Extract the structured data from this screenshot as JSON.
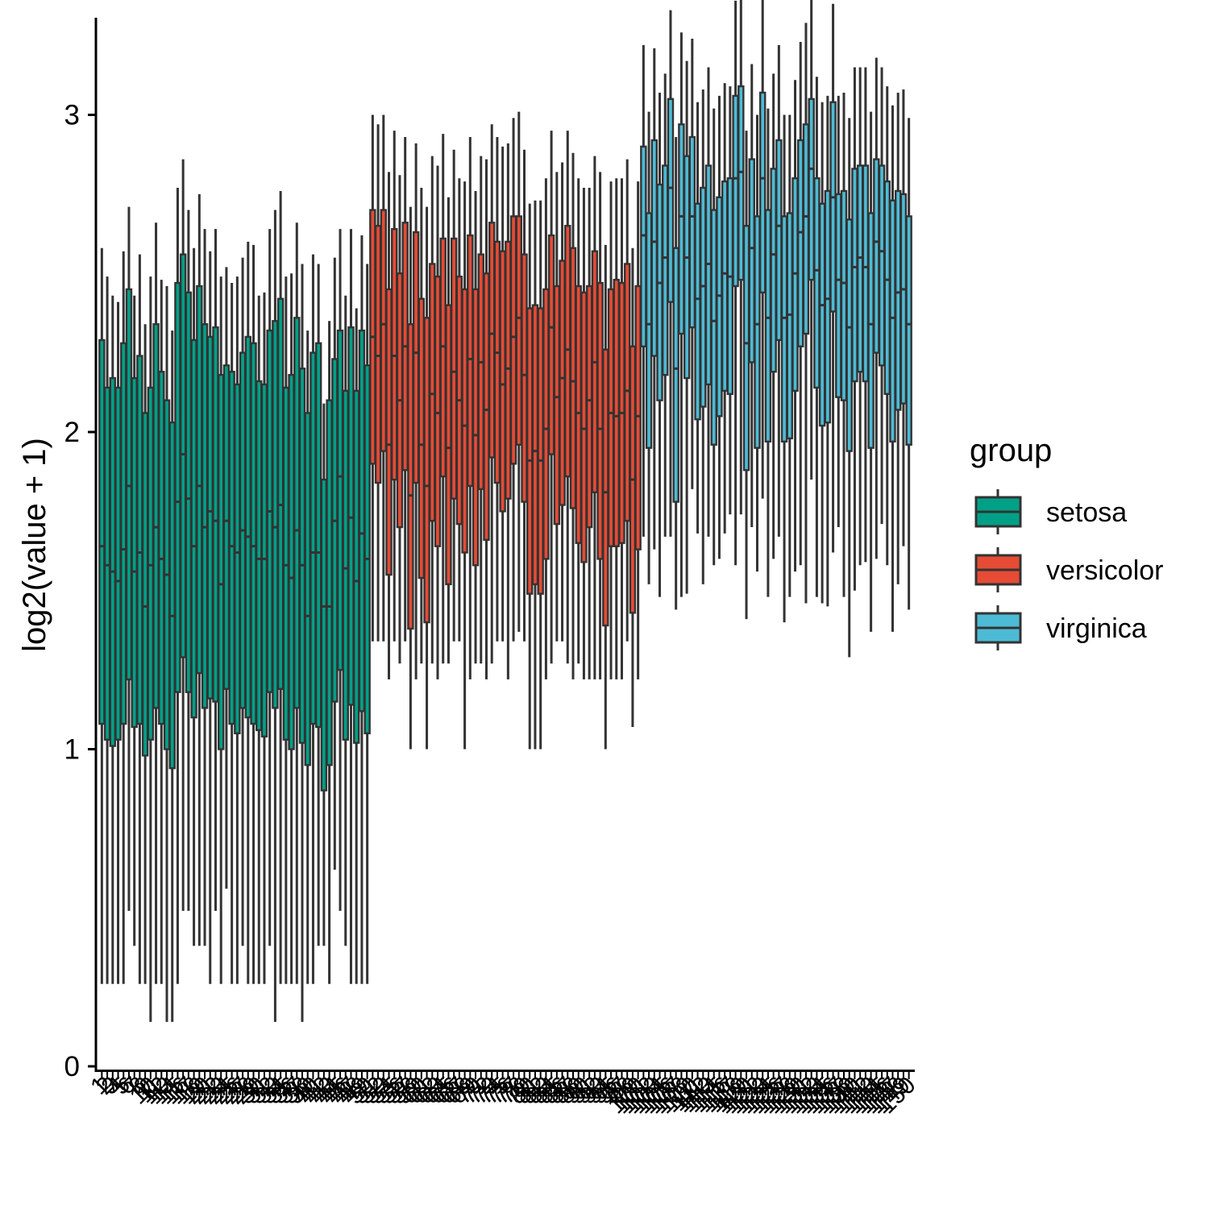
{
  "chart_data": {
    "type": "boxplot",
    "title": "",
    "xlabel": "",
    "ylabel": "log2(value + 1)",
    "ylim": [
      0,
      3.3
    ],
    "y_ticks": [
      "0",
      "1",
      "2",
      "3"
    ],
    "grid": false,
    "legend": {
      "title": "group",
      "position": "right",
      "entries": [
        "setosa",
        "versicolor",
        "virginica"
      ]
    },
    "colors": {
      "setosa": "#00A087",
      "versicolor": "#E64B35",
      "virginica": "#4DBBD5",
      "outline": "#333333"
    },
    "categories": [
      "1",
      "2",
      "3",
      "4",
      "5",
      "6",
      "7",
      "8",
      "9",
      "10",
      "11",
      "12",
      "13",
      "14",
      "15",
      "16",
      "17",
      "18",
      "19",
      "20",
      "21",
      "22",
      "23",
      "24",
      "25",
      "26",
      "27",
      "28",
      "29",
      "30",
      "31",
      "32",
      "33",
      "34",
      "35",
      "36",
      "37",
      "38",
      "39",
      "40",
      "41",
      "42",
      "43",
      "44",
      "45",
      "46",
      "47",
      "48",
      "49",
      "50",
      "51",
      "52",
      "53",
      "54",
      "55",
      "56",
      "57",
      "58",
      "59",
      "60",
      "61",
      "62",
      "63",
      "64",
      "65",
      "66",
      "67",
      "68",
      "69",
      "70",
      "71",
      "72",
      "73",
      "74",
      "75",
      "76",
      "77",
      "78",
      "79",
      "80",
      "81",
      "82",
      "83",
      "84",
      "85",
      "86",
      "87",
      "88",
      "89",
      "90",
      "91",
      "92",
      "93",
      "94",
      "95",
      "96",
      "97",
      "98",
      "99",
      "100",
      "101",
      "102",
      "103",
      "104",
      "105",
      "106",
      "107",
      "108",
      "109",
      "110",
      "111",
      "112",
      "113",
      "114",
      "115",
      "116",
      "117",
      "118",
      "119",
      "120",
      "121",
      "122",
      "123",
      "124",
      "125",
      "126",
      "127",
      "128",
      "129",
      "130",
      "131",
      "132",
      "133",
      "134",
      "135",
      "136",
      "137",
      "138",
      "139",
      "140",
      "141",
      "142",
      "143",
      "144",
      "145",
      "146",
      "147",
      "148",
      "149",
      "150"
    ],
    "groups": [
      "setosa",
      "setosa",
      "setosa",
      "setosa",
      "setosa",
      "setosa",
      "setosa",
      "setosa",
      "setosa",
      "setosa",
      "setosa",
      "setosa",
      "setosa",
      "setosa",
      "setosa",
      "setosa",
      "setosa",
      "setosa",
      "setosa",
      "setosa",
      "setosa",
      "setosa",
      "setosa",
      "setosa",
      "setosa",
      "setosa",
      "setosa",
      "setosa",
      "setosa",
      "setosa",
      "setosa",
      "setosa",
      "setosa",
      "setosa",
      "setosa",
      "setosa",
      "setosa",
      "setosa",
      "setosa",
      "setosa",
      "setosa",
      "setosa",
      "setosa",
      "setosa",
      "setosa",
      "setosa",
      "setosa",
      "setosa",
      "setosa",
      "setosa",
      "versicolor",
      "versicolor",
      "versicolor",
      "versicolor",
      "versicolor",
      "versicolor",
      "versicolor",
      "versicolor",
      "versicolor",
      "versicolor",
      "versicolor",
      "versicolor",
      "versicolor",
      "versicolor",
      "versicolor",
      "versicolor",
      "versicolor",
      "versicolor",
      "versicolor",
      "versicolor",
      "versicolor",
      "versicolor",
      "versicolor",
      "versicolor",
      "versicolor",
      "versicolor",
      "versicolor",
      "versicolor",
      "versicolor",
      "versicolor",
      "versicolor",
      "versicolor",
      "versicolor",
      "versicolor",
      "versicolor",
      "versicolor",
      "versicolor",
      "versicolor",
      "versicolor",
      "versicolor",
      "versicolor",
      "versicolor",
      "versicolor",
      "versicolor",
      "versicolor",
      "versicolor",
      "versicolor",
      "versicolor",
      "versicolor",
      "versicolor",
      "virginica",
      "virginica",
      "virginica",
      "virginica",
      "virginica",
      "virginica",
      "virginica",
      "virginica",
      "virginica",
      "virginica",
      "virginica",
      "virginica",
      "virginica",
      "virginica",
      "virginica",
      "virginica",
      "virginica",
      "virginica",
      "virginica",
      "virginica",
      "virginica",
      "virginica",
      "virginica",
      "virginica",
      "virginica",
      "virginica",
      "virginica",
      "virginica",
      "virginica",
      "virginica",
      "virginica",
      "virginica",
      "virginica",
      "virginica",
      "virginica",
      "virginica",
      "virginica",
      "virginica",
      "virginica",
      "virginica",
      "virginica",
      "virginica",
      "virginica",
      "virginica",
      "virginica",
      "virginica",
      "virginica",
      "virginica",
      "virginica",
      "virginica"
    ],
    "ymax": [
      2.58,
      2.49,
      2.43,
      2.41,
      2.57,
      2.71,
      2.43,
      2.56,
      2.34,
      2.49,
      2.66,
      2.48,
      2.46,
      2.32,
      2.77,
      2.86,
      2.7,
      2.58,
      2.75,
      2.64,
      2.57,
      2.64,
      2.49,
      2.52,
      2.47,
      2.49,
      2.55,
      2.6,
      2.59,
      2.43,
      2.44,
      2.64,
      2.7,
      2.76,
      2.49,
      2.5,
      2.66,
      2.53,
      2.32,
      2.56,
      2.53,
      2.09,
      2.35,
      2.55,
      2.64,
      2.43,
      2.64,
      2.39,
      2.62,
      2.53,
      3.0,
      2.97,
      3.0,
      2.82,
      2.95,
      2.81,
      2.93,
      2.71,
      2.91,
      2.77,
      2.71,
      2.87,
      2.84,
      2.94,
      2.74,
      2.89,
      2.8,
      2.79,
      2.93,
      2.76,
      2.87,
      2.86,
      2.97,
      2.93,
      2.9,
      2.91,
      2.99,
      3.01,
      2.89,
      2.72,
      2.73,
      2.73,
      2.8,
      2.95,
      2.82,
      2.85,
      2.95,
      2.88,
      2.8,
      2.77,
      2.77,
      2.87,
      2.82,
      2.59,
      2.79,
      2.8,
      2.8,
      2.86,
      2.58,
      2.79,
      3.22,
      3.01,
      3.21,
      3.07,
      3.13,
      3.33,
      2.93,
      3.26,
      3.17,
      3.24,
      3.04,
      3.08,
      3.15,
      3.02,
      3.06,
      3.1,
      3.09,
      3.36,
      3.4,
      2.95,
      3.16,
      3.0,
      3.37,
      3.02,
      3.13,
      3.22,
      3.0,
      3.0,
      3.11,
      3.23,
      3.29,
      3.37,
      3.12,
      3.04,
      3.06,
      3.35,
      3.06,
      3.07,
      2.99,
      3.15,
      3.15,
      3.15,
      3.01,
      3.18,
      3.15,
      3.09,
      3.03,
      3.07,
      3.08,
      2.99
    ],
    "q3": [
      2.29,
      2.14,
      2.17,
      2.14,
      2.28,
      2.45,
      2.17,
      2.24,
      2.06,
      2.14,
      2.34,
      2.19,
      2.1,
      2.03,
      2.47,
      2.56,
      2.44,
      2.29,
      2.46,
      2.34,
      2.3,
      2.33,
      2.18,
      2.21,
      2.19,
      2.15,
      2.25,
      2.3,
      2.28,
      2.16,
      2.15,
      2.32,
      2.35,
      2.42,
      2.14,
      2.18,
      2.36,
      2.2,
      2.06,
      2.25,
      2.28,
      1.85,
      2.1,
      2.23,
      2.32,
      2.13,
      2.33,
      2.13,
      2.32,
      2.21,
      2.7,
      2.65,
      2.7,
      2.45,
      2.64,
      2.5,
      2.66,
      2.34,
      2.63,
      2.42,
      2.36,
      2.53,
      2.49,
      2.61,
      2.4,
      2.61,
      2.49,
      2.45,
      2.62,
      2.45,
      2.56,
      2.5,
      2.66,
      2.6,
      2.57,
      2.6,
      2.68,
      2.68,
      2.56,
      2.39,
      2.4,
      2.39,
      2.45,
      2.62,
      2.46,
      2.54,
      2.65,
      2.58,
      2.46,
      2.44,
      2.46,
      2.57,
      2.47,
      2.26,
      2.45,
      2.48,
      2.47,
      2.53,
      2.27,
      2.46,
      2.9,
      2.69,
      2.92,
      2.78,
      2.84,
      3.05,
      2.58,
      2.97,
      2.87,
      2.93,
      2.72,
      2.77,
      2.84,
      2.7,
      2.74,
      2.79,
      2.8,
      3.06,
      3.09,
      2.65,
      2.86,
      2.68,
      3.07,
      2.7,
      2.83,
      2.92,
      2.68,
      2.69,
      2.8,
      2.92,
      2.97,
      3.05,
      2.8,
      2.72,
      2.76,
      3.04,
      2.75,
      2.76,
      2.67,
      2.83,
      2.84,
      2.84,
      2.69,
      2.86,
      2.84,
      2.79,
      2.73,
      2.76,
      2.75,
      2.68
    ],
    "median": [
      1.64,
      1.58,
      1.56,
      1.53,
      1.63,
      1.83,
      1.56,
      1.62,
      1.45,
      1.58,
      1.7,
      1.6,
      1.55,
      1.42,
      1.78,
      1.93,
      1.79,
      1.64,
      1.83,
      1.7,
      1.75,
      1.72,
      1.52,
      1.72,
      1.64,
      1.62,
      1.69,
      1.67,
      1.64,
      1.6,
      1.6,
      1.75,
      1.7,
      1.77,
      1.58,
      1.54,
      1.69,
      1.58,
      1.42,
      1.62,
      1.62,
      1.45,
      1.45,
      1.72,
      1.86,
      1.57,
      1.73,
      1.53,
      1.68,
      1.6,
      2.3,
      2.24,
      2.34,
      1.96,
      2.24,
      2.1,
      2.27,
      1.8,
      2.25,
      1.96,
      1.83,
      2.12,
      2.06,
      2.27,
      1.95,
      2.19,
      2.1,
      2.02,
      2.23,
      1.99,
      2.22,
      2.07,
      2.31,
      2.25,
      2.15,
      2.2,
      2.3,
      2.36,
      2.18,
      1.91,
      1.94,
      1.91,
      2.01,
      2.33,
      2.11,
      2.17,
      2.26,
      2.16,
      2.06,
      2.01,
      2.1,
      2.22,
      2.01,
      1.81,
      2.06,
      2.05,
      2.06,
      2.13,
      1.85,
      2.05,
      2.62,
      2.34,
      2.6,
      2.47,
      2.55,
      2.77,
      2.2,
      2.68,
      2.55,
      2.68,
      2.42,
      2.46,
      2.53,
      2.35,
      2.43,
      2.5,
      2.49,
      2.8,
      2.82,
      2.28,
      2.58,
      2.34,
      2.8,
      2.36,
      2.56,
      2.65,
      2.36,
      2.37,
      2.5,
      2.63,
      2.68,
      2.83,
      2.51,
      2.4,
      2.42,
      2.74,
      2.48,
      2.47,
      2.33,
      2.52,
      2.55,
      2.52,
      2.34,
      2.6,
      2.57,
      2.48,
      2.36,
      2.44,
      2.45,
      2.34
    ],
    "q1": [
      1.08,
      1.03,
      1.01,
      1.03,
      1.08,
      1.22,
      1.07,
      1.08,
      0.98,
      1.03,
      1.13,
      1.08,
      1.0,
      0.94,
      1.18,
      1.29,
      1.18,
      1.1,
      1.24,
      1.13,
      1.16,
      1.15,
      1.0,
      1.19,
      1.08,
      1.05,
      1.13,
      1.1,
      1.08,
      1.06,
      1.04,
      1.18,
      1.13,
      1.19,
      1.03,
      1.0,
      1.13,
      1.02,
      0.95,
      1.08,
      1.07,
      0.87,
      0.95,
      1.15,
      1.25,
      1.03,
      1.14,
      1.02,
      1.12,
      1.05,
      1.9,
      1.84,
      1.94,
      1.55,
      1.85,
      1.7,
      1.88,
      1.38,
      1.84,
      1.54,
      1.4,
      1.72,
      1.64,
      1.86,
      1.52,
      1.79,
      1.71,
      1.62,
      1.83,
      1.58,
      1.82,
      1.66,
      1.92,
      1.84,
      1.75,
      1.79,
      1.9,
      1.96,
      1.78,
      1.49,
      1.52,
      1.49,
      1.6,
      1.93,
      1.71,
      1.77,
      1.86,
      1.76,
      1.65,
      1.59,
      1.7,
      1.81,
      1.6,
      1.39,
      1.64,
      1.64,
      1.65,
      1.72,
      1.43,
      1.63,
      2.27,
      1.95,
      2.24,
      2.1,
      2.18,
      2.41,
      1.78,
      2.31,
      2.17,
      2.33,
      2.04,
      2.08,
      2.15,
      1.96,
      2.05,
      2.13,
      2.12,
      2.46,
      2.48,
      1.88,
      2.22,
      1.95,
      2.44,
      1.97,
      2.19,
      2.29,
      1.97,
      1.98,
      2.13,
      2.27,
      2.31,
      2.48,
      2.14,
      2.02,
      2.03,
      2.38,
      2.11,
      2.1,
      1.94,
      2.16,
      2.19,
      2.16,
      1.95,
      2.25,
      2.21,
      2.12,
      1.97,
      2.07,
      2.09,
      1.96
    ],
    "ymin": [
      0.26,
      0.26,
      0.26,
      0.26,
      0.26,
      0.49,
      0.38,
      0.26,
      0.26,
      0.14,
      0.26,
      0.26,
      0.14,
      0.14,
      0.26,
      0.49,
      0.49,
      0.38,
      0.38,
      0.38,
      0.26,
      0.49,
      0.26,
      0.56,
      0.26,
      0.26,
      0.38,
      0.26,
      0.26,
      0.26,
      0.26,
      0.38,
      0.14,
      0.26,
      0.26,
      0.26,
      0.26,
      0.14,
      0.26,
      0.26,
      0.38,
      0.38,
      0.26,
      0.62,
      0.49,
      0.38,
      0.26,
      0.26,
      0.26,
      0.26,
      1.34,
      1.34,
      1.34,
      1.22,
      1.34,
      1.27,
      1.34,
      1.0,
      1.22,
      1.27,
      1.0,
      1.27,
      1.22,
      1.27,
      1.27,
      1.34,
      1.34,
      1.0,
      1.22,
      1.27,
      1.27,
      1.22,
      1.27,
      1.34,
      1.34,
      1.22,
      1.34,
      1.37,
      1.34,
      1.0,
      1.0,
      1.0,
      1.22,
      1.27,
      1.34,
      1.34,
      1.27,
      1.22,
      1.27,
      1.22,
      1.22,
      1.22,
      1.22,
      1.0,
      1.22,
      1.22,
      1.22,
      1.34,
      1.07,
      1.22,
      1.67,
      1.52,
      1.63,
      1.48,
      1.67,
      1.67,
      1.44,
      1.48,
      1.49,
      1.82,
      1.68,
      1.52,
      1.67,
      1.58,
      1.6,
      1.68,
      1.74,
      1.58,
      1.74,
      1.41,
      1.7,
      1.56,
      1.79,
      1.48,
      1.6,
      1.67,
      1.4,
      1.48,
      1.56,
      1.58,
      1.46,
      1.85,
      1.48,
      1.46,
      1.45,
      1.62,
      1.7,
      1.48,
      1.29,
      1.5,
      1.58,
      1.59,
      1.37,
      1.6,
      1.71,
      1.58,
      1.37,
      1.52,
      1.64,
      1.44
    ]
  }
}
